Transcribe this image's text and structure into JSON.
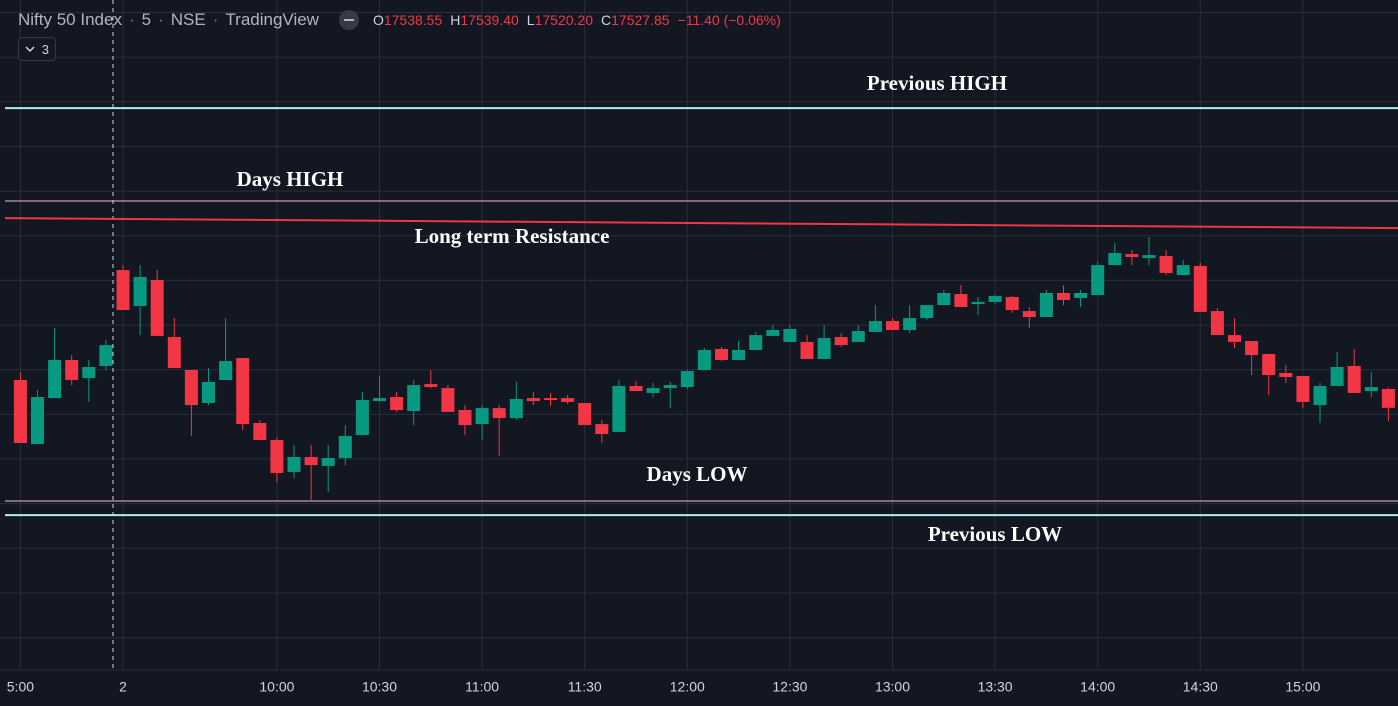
{
  "header": {
    "symbol": "Nifty 50 Index",
    "interval": "5",
    "exchange": "NSE",
    "source": "TradingView",
    "ohlc": [
      {
        "key": "O",
        "value": "17538.55"
      },
      {
        "key": "H",
        "value": "17539.40"
      },
      {
        "key": "L",
        "value": "17520.20"
      },
      {
        "key": "C",
        "value": "17527.85"
      }
    ],
    "change": "−11.40 (−0.06%)",
    "indicators": "3"
  },
  "chart_data": {
    "type": "candlestick",
    "up_color": "#089981",
    "down_color": "#f23645",
    "categories": [
      "5:00",
      null,
      null,
      null,
      null,
      null,
      "2",
      null,
      null,
      null,
      null,
      null,
      null,
      null,
      null,
      "10:00",
      null,
      null,
      null,
      null,
      null,
      "10:30",
      null,
      null,
      null,
      null,
      null,
      "11:00",
      null,
      null,
      null,
      null,
      null,
      "11:30",
      null,
      null,
      null,
      null,
      null,
      "12:00",
      null,
      null,
      null,
      null,
      null,
      "12:30",
      null,
      null,
      null,
      null,
      null,
      "13:00",
      null,
      null,
      null,
      null,
      null,
      "13:30",
      null,
      null,
      null,
      null,
      null,
      "14:00",
      null,
      null,
      null,
      null,
      null,
      "14:30",
      null,
      null,
      null,
      null,
      null,
      "15:00",
      null,
      null,
      null,
      null,
      null
    ],
    "ohlc": [
      [
        17543.7,
        17548.3,
        17507.8,
        17507.8
      ],
      [
        17507.2,
        17538.0,
        17507.2,
        17534.0
      ],
      [
        17533.4,
        17573.3,
        17533.4,
        17555.1
      ],
      [
        17555.1,
        17557.9,
        17540.8,
        17543.7
      ],
      [
        17544.8,
        17555.1,
        17531.2,
        17551.1
      ],
      [
        17551.7,
        17566.5,
        17549.4,
        17563.6
      ],
      [
        17606.4,
        17609.2,
        17583.6,
        17583.6
      ],
      [
        17585.9,
        17609.2,
        17569.3,
        17602.4
      ],
      [
        17600.7,
        17606.4,
        17568.8,
        17568.8
      ],
      [
        17568.2,
        17579.0,
        17550.5,
        17550.5
      ],
      [
        17549.4,
        17549.4,
        17511.8,
        17529.4
      ],
      [
        17530.6,
        17550.5,
        17529.4,
        17542.6
      ],
      [
        17543.7,
        17579.0,
        17543.7,
        17554.5
      ],
      [
        17556.2,
        17556.2,
        17515.2,
        17518.6
      ],
      [
        17519.2,
        17520.9,
        17509.5,
        17509.5
      ],
      [
        17509.5,
        17511.2,
        17485.6,
        17490.7
      ],
      [
        17491.3,
        17506.6,
        17487.8,
        17499.8
      ],
      [
        17499.8,
        17506.6,
        17475.3,
        17495.2
      ],
      [
        17494.7,
        17506.6,
        17479.9,
        17499.2
      ],
      [
        17499.2,
        17518.0,
        17495.2,
        17511.8
      ],
      [
        17512.3,
        17536.9,
        17512.3,
        17532.3
      ],
      [
        17531.7,
        17546.0,
        17531.2,
        17533.4
      ],
      [
        17534.0,
        17536.9,
        17525.5,
        17526.6
      ],
      [
        17526.0,
        17543.7,
        17518.0,
        17540.8
      ],
      [
        17541.4,
        17549.4,
        17539.1,
        17539.7
      ],
      [
        17539.1,
        17540.8,
        17525.5,
        17525.5
      ],
      [
        17526.6,
        17529.4,
        17512.3,
        17518.0
      ],
      [
        17518.6,
        17529.4,
        17509.5,
        17527.7
      ],
      [
        17527.7,
        17529.4,
        17500.4,
        17522.0
      ],
      [
        17522.0,
        17542.6,
        17520.9,
        17532.9
      ],
      [
        17533.4,
        17536.9,
        17529.4,
        17531.7
      ],
      [
        17533.4,
        17536.3,
        17528.9,
        17532.3
      ],
      [
        17533.4,
        17535.1,
        17530.0,
        17531.2
      ],
      [
        17530.6,
        17530.6,
        17518.0,
        17518.0
      ],
      [
        17518.6,
        17520.9,
        17507.8,
        17512.9
      ],
      [
        17514.1,
        17543.7,
        17514.1,
        17540.3
      ],
      [
        17540.3,
        17543.1,
        17537.4,
        17537.4
      ],
      [
        17536.3,
        17542.0,
        17534.0,
        17539.1
      ],
      [
        17539.1,
        17542.6,
        17527.7,
        17540.8
      ],
      [
        17539.7,
        17549.4,
        17538.6,
        17548.8
      ],
      [
        17549.4,
        17561.9,
        17549.4,
        17560.8
      ],
      [
        17561.4,
        17562.5,
        17554.5,
        17555.1
      ],
      [
        17555.1,
        17565.9,
        17555.1,
        17560.8
      ],
      [
        17560.8,
        17571.1,
        17560.8,
        17569.3
      ],
      [
        17568.8,
        17575.0,
        17568.8,
        17572.2
      ],
      [
        17565.4,
        17575.0,
        17565.4,
        17572.8
      ],
      [
        17565.4,
        17569.3,
        17555.7,
        17555.7
      ],
      [
        17555.7,
        17575.0,
        17555.7,
        17567.6
      ],
      [
        17568.2,
        17570.5,
        17562.5,
        17563.6
      ],
      [
        17565.4,
        17575.0,
        17565.4,
        17571.6
      ],
      [
        17571.1,
        17586.4,
        17571.1,
        17577.3
      ],
      [
        17577.3,
        17579.0,
        17572.2,
        17572.2
      ],
      [
        17572.2,
        17586.4,
        17570.5,
        17579.0
      ],
      [
        17579.0,
        17586.4,
        17577.9,
        17586.4
      ],
      [
        17586.4,
        17595.0,
        17586.4,
        17593.3
      ],
      [
        17592.7,
        17597.8,
        17585.3,
        17585.3
      ],
      [
        17587.0,
        17591.0,
        17580.7,
        17588.2
      ],
      [
        17588.2,
        17592.1,
        17587.0,
        17591.6
      ],
      [
        17591.0,
        17591.6,
        17581.9,
        17583.6
      ],
      [
        17583.0,
        17585.3,
        17573.3,
        17579.6
      ],
      [
        17579.6,
        17595.0,
        17579.6,
        17593.3
      ],
      [
        17593.3,
        17597.8,
        17586.4,
        17589.3
      ],
      [
        17590.4,
        17595.0,
        17585.3,
        17593.3
      ],
      [
        17592.1,
        17611.0,
        17592.1,
        17609.2
      ],
      [
        17609.2,
        17621.8,
        17609.2,
        17616.1
      ],
      [
        17615.5,
        17617.8,
        17609.2,
        17613.8
      ],
      [
        17613.2,
        17625.2,
        17609.2,
        17614.9
      ],
      [
        17614.4,
        17617.8,
        17603.5,
        17604.7
      ],
      [
        17603.5,
        17612.1,
        17603.5,
        17609.2
      ],
      [
        17608.7,
        17610.4,
        17582.5,
        17582.5
      ],
      [
        17583.0,
        17584.7,
        17569.3,
        17569.3
      ],
      [
        17569.3,
        17579.0,
        17561.9,
        17565.4
      ],
      [
        17565.9,
        17565.9,
        17546.5,
        17557.9
      ],
      [
        17558.5,
        17558.5,
        17535.1,
        17546.5
      ],
      [
        17547.7,
        17552.2,
        17542.0,
        17545.4
      ],
      [
        17546.0,
        17546.0,
        17527.7,
        17531.2
      ],
      [
        17529.4,
        17542.0,
        17519.2,
        17540.3
      ],
      [
        17540.3,
        17559.7,
        17540.3,
        17551.1
      ],
      [
        17551.7,
        17561.4,
        17536.3,
        17536.3
      ],
      [
        17537.4,
        17548.3,
        17534.0,
        17539.7
      ],
      [
        17538.55,
        17539.4,
        17520.2,
        17527.85
      ]
    ],
    "ylim": [
      17378.4,
      17760.3
    ],
    "levels": [
      {
        "label": "Previous HIGH",
        "value": 17698.7,
        "color": "#b2ebf2"
      },
      {
        "label": "Days HIGH",
        "value": 17645.7,
        "color": "#f8bbd0"
      },
      {
        "label": "Days LOW",
        "value": 17474.7,
        "color": "#f8bbd0"
      },
      {
        "label": "Previous LOW",
        "value": 17466.7,
        "color": "#b2ebf2"
      }
    ],
    "trendline": {
      "label": "Long term Resistance",
      "values": [
        17636.0,
        17630.3
      ],
      "color": "#f23645"
    }
  }
}
